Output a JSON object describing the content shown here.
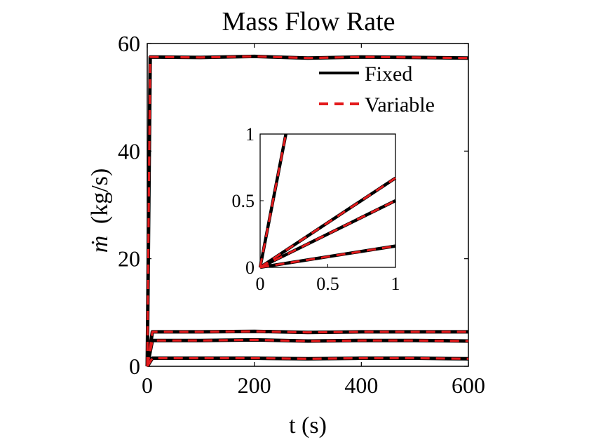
{
  "chart_data": {
    "type": "line",
    "title": "Mass Flow Rate",
    "xlabel": "t (s)",
    "ylabel_symbol": "ṁ",
    "ylabel_unit": "(kg/s)",
    "xlim": [
      0,
      600
    ],
    "ylim": [
      0,
      60
    ],
    "xticks": [
      0,
      200,
      400,
      600
    ],
    "yticks": [
      0,
      20,
      40,
      60
    ],
    "grid": false,
    "legend_position": "top-right",
    "legend": [
      {
        "name": "Fixed",
        "color": "#000000",
        "style": "solid"
      },
      {
        "name": "Variable",
        "color": "#e31a1c",
        "style": "dashed"
      }
    ],
    "series": [
      {
        "name": "Fixed",
        "group": 1,
        "x": [
          0,
          5.5,
          100,
          200,
          300,
          400,
          500,
          600
        ],
        "y": [
          0,
          57.5,
          57.4,
          57.6,
          57.3,
          57.5,
          57.4,
          57.3
        ]
      },
      {
        "name": "Variable",
        "group": 1,
        "x": [
          0,
          5.5,
          100,
          200,
          300,
          400,
          500,
          600
        ],
        "y": [
          0,
          57.5,
          57.4,
          57.6,
          57.3,
          57.5,
          57.4,
          57.3
        ]
      },
      {
        "name": "Fixed",
        "group": 2,
        "x": [
          0,
          9.5,
          100,
          200,
          300,
          400,
          500,
          600
        ],
        "y": [
          0,
          6.4,
          6.4,
          6.5,
          6.3,
          6.4,
          6.4,
          6.4
        ]
      },
      {
        "name": "Variable",
        "group": 2,
        "x": [
          0,
          9.5,
          100,
          200,
          300,
          400,
          500,
          600
        ],
        "y": [
          0,
          6.4,
          6.4,
          6.5,
          6.3,
          6.4,
          6.4,
          6.4
        ]
      },
      {
        "name": "Fixed",
        "group": 3,
        "x": [
          0,
          9.5,
          100,
          200,
          300,
          400,
          500,
          600
        ],
        "y": [
          0,
          4.8,
          4.8,
          4.9,
          4.7,
          4.8,
          4.8,
          4.7
        ]
      },
      {
        "name": "Variable",
        "group": 3,
        "x": [
          0,
          9.5,
          100,
          200,
          300,
          400,
          500,
          600
        ],
        "y": [
          0,
          4.8,
          4.8,
          4.9,
          4.7,
          4.8,
          4.8,
          4.7
        ]
      },
      {
        "name": "Fixed",
        "group": 4,
        "x": [
          0,
          9.5,
          100,
          200,
          300,
          400,
          500,
          600
        ],
        "y": [
          0,
          1.5,
          1.5,
          1.5,
          1.4,
          1.5,
          1.5,
          1.4
        ]
      },
      {
        "name": "Variable",
        "group": 4,
        "x": [
          0,
          9.5,
          100,
          200,
          300,
          400,
          500,
          600
        ],
        "y": [
          0,
          1.5,
          1.5,
          1.5,
          1.4,
          1.5,
          1.5,
          1.4
        ]
      }
    ],
    "inset": {
      "type": "line",
      "xlim": [
        0,
        1
      ],
      "ylim": [
        0,
        1
      ],
      "xticks": [
        0,
        0.5,
        1
      ],
      "xtick_labels": [
        "0",
        "0.5",
        "1"
      ],
      "yticks": [
        0,
        0.5,
        1
      ],
      "ytick_labels": [
        "0",
        "0.5",
        "1"
      ],
      "series": [
        {
          "name": "Fixed",
          "group": 1,
          "x": [
            0,
            0.19
          ],
          "y": [
            0,
            1.0
          ]
        },
        {
          "name": "Variable",
          "group": 1,
          "x": [
            0,
            0.19
          ],
          "y": [
            0,
            1.0
          ]
        },
        {
          "name": "Fixed",
          "group": 2,
          "x": [
            0,
            1
          ],
          "y": [
            0,
            0.67
          ]
        },
        {
          "name": "Variable",
          "group": 2,
          "x": [
            0,
            1
          ],
          "y": [
            0,
            0.67
          ]
        },
        {
          "name": "Fixed",
          "group": 3,
          "x": [
            0,
            1
          ],
          "y": [
            0,
            0.5
          ]
        },
        {
          "name": "Variable",
          "group": 3,
          "x": [
            0,
            1
          ],
          "y": [
            0,
            0.5
          ]
        },
        {
          "name": "Fixed",
          "group": 4,
          "x": [
            0,
            1
          ],
          "y": [
            0,
            0.16
          ]
        },
        {
          "name": "Variable",
          "group": 4,
          "x": [
            0,
            1
          ],
          "y": [
            0,
            0.16
          ]
        }
      ]
    }
  }
}
